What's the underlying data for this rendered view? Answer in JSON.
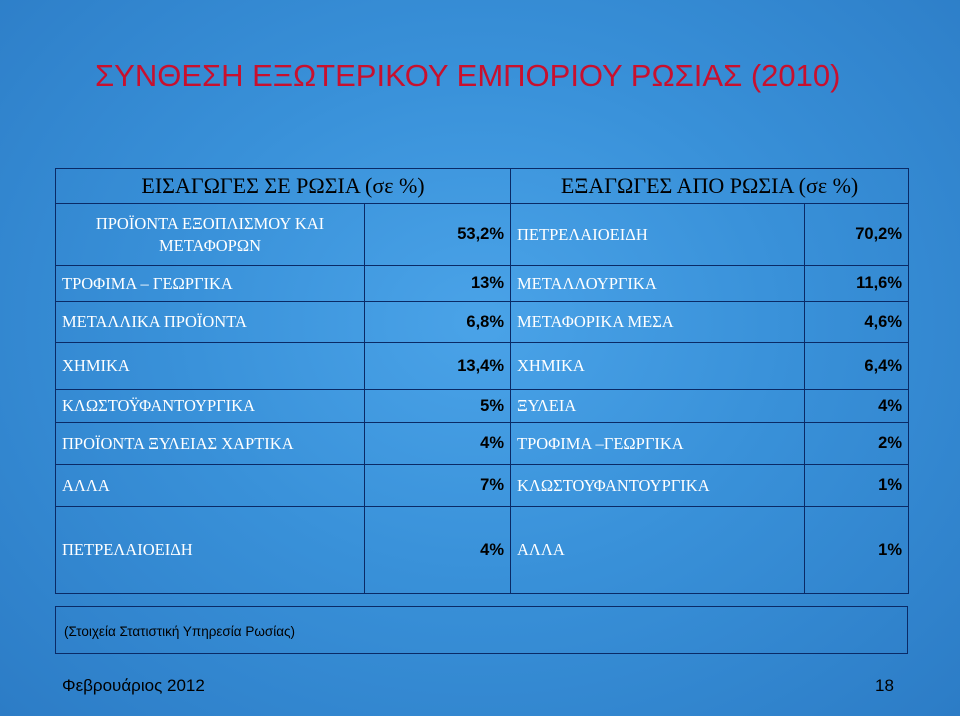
{
  "title": "ΣΥΝΘΕΣΗ ΕΞΩΤΕΡΙΚΟΥ ΕΜΠΟΡΙΟΥ ΡΩΣΙΑΣ (2010)",
  "imports_header": "ΕΙΣΑΓΩΓΕΣ ΣΕ ΡΩΣΙΑ (σε %)",
  "exports_header": "ΕΞΑΓΩΓΕΣ ΑΠΟ ΡΩΣΙΑ (σε %)",
  "rows": [
    {
      "imp_name": "ΠΡΟΪΟΝΤΑ ΕΞΟΠΛΙΣΜΟΥ ΚΑΙ ΜΕΤΑΦΟΡΩΝ",
      "imp_val": "53,2%",
      "exp_name": "ΠΕΤΡΕΛΑΙΟΕΙΔΗ",
      "exp_val": "70,2%"
    },
    {
      "imp_name": "ΤΡΟΦΙΜΑ – ΓΕΩΡΓΙΚΑ",
      "imp_val": "13%",
      "exp_name": "ΜΕΤΑΛΛΟΥΡΓΙΚΑ",
      "exp_val": "11,6%"
    },
    {
      "imp_name": "ΜΕΤΑΛΛΙΚΑ ΠΡΟΪΟΝΤΑ",
      "imp_val": "6,8%",
      "exp_name": "ΜΕΤΑΦΟΡΙΚΑ ΜΕΣΑ",
      "exp_val": "4,6%"
    },
    {
      "imp_name": "ΧΗΜΙΚΑ",
      "imp_val": "13,4%",
      "exp_name": "ΧΗΜΙΚΑ",
      "exp_val": "6,4%"
    },
    {
      "imp_name": "ΚΛΩΣΤΟΫΦΑΝΤΟΥΡΓΙΚΑ",
      "imp_val": "5%",
      "exp_name": "ΞΥΛΕΙΑ",
      "exp_val": "4%"
    },
    {
      "imp_name": "ΠΡΟΪΟΝΤΑ ΞΥΛΕΙΑΣ ΧΑΡΤΙΚΑ",
      "imp_val": "4%",
      "exp_name": "ΤΡΟΦΙΜΑ –ΓΕΩΡΓΙΚΑ",
      "exp_val": "2%"
    },
    {
      "imp_name": "ΑΛΛΑ",
      "imp_val": "7%",
      "exp_name": "ΚΛΩΣΤΟΥΦΑΝΤΟΥΡΓΙΚΑ",
      "exp_val": "1%"
    },
    {
      "imp_name": "ΠΕΤΡΕΛΑΙΟΕΙΔΗ",
      "imp_val": "4%",
      "exp_name": "ΑΛΛΑ",
      "exp_val": "1%"
    }
  ],
  "source": "(Στοιχεία Στατιστική Υπηρεσία Ρωσίας)",
  "date": "Φεβρουάριος 2012",
  "page_number": "18",
  "colors": {
    "background": "#3a8fd6",
    "title": "#c8102e",
    "border": "#0a2a66"
  }
}
